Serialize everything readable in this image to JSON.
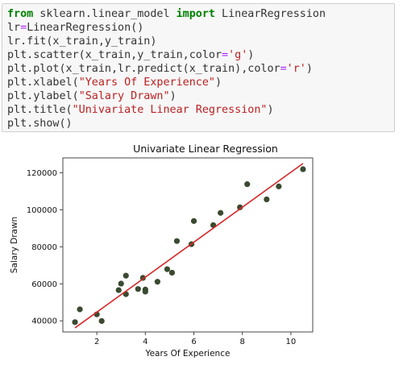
{
  "code": {
    "lines": [
      [
        {
          "t": "from",
          "c": "kw"
        },
        {
          "t": " sklearn.linear_model ",
          "c": ""
        },
        {
          "t": "import",
          "c": "kw"
        },
        {
          "t": " LinearRegression",
          "c": ""
        }
      ],
      [
        {
          "t": "lr",
          "c": ""
        },
        {
          "t": "=",
          "c": "op"
        },
        {
          "t": "LinearRegression()",
          "c": ""
        }
      ],
      [
        {
          "t": "lr.fit(x_train,y_train)",
          "c": ""
        }
      ],
      [
        {
          "t": "plt.scatter(x_train,y_train,color",
          "c": ""
        },
        {
          "t": "=",
          "c": "op"
        },
        {
          "t": "'g'",
          "c": "str"
        },
        {
          "t": ")",
          "c": ""
        }
      ],
      [
        {
          "t": "plt.plot(x_train,lr.predict(x_train),color",
          "c": ""
        },
        {
          "t": "=",
          "c": "op"
        },
        {
          "t": "'r'",
          "c": "str"
        },
        {
          "t": ")",
          "c": ""
        }
      ],
      [
        {
          "t": "plt.xlabel(",
          "c": ""
        },
        {
          "t": "\"Years Of Experience\"",
          "c": "str"
        },
        {
          "t": ")",
          "c": ""
        }
      ],
      [
        {
          "t": "plt.ylabel(",
          "c": ""
        },
        {
          "t": "\"Salary Drawn\"",
          "c": "str"
        },
        {
          "t": ")",
          "c": ""
        }
      ],
      [
        {
          "t": "plt.title(",
          "c": ""
        },
        {
          "t": "\"Univariate Linear Regression\"",
          "c": "str"
        },
        {
          "t": ")",
          "c": ""
        }
      ],
      [
        {
          "t": "plt.show()",
          "c": ""
        }
      ]
    ]
  },
  "chart_data": {
    "type": "scatter",
    "title": "Univariate Linear Regression",
    "xlabel": "Years Of Experience",
    "ylabel": "Salary Drawn",
    "xlim": [
      0.6,
      10.9
    ],
    "ylim": [
      34000,
      128000
    ],
    "xticks": [
      2,
      4,
      6,
      8,
      10
    ],
    "yticks": [
      40000,
      60000,
      80000,
      100000,
      120000
    ],
    "grid": false,
    "series": [
      {
        "kind": "scatter",
        "color": "#3a4a30",
        "points": [
          [
            1.1,
            39300
          ],
          [
            1.3,
            46200
          ],
          [
            2.0,
            43500
          ],
          [
            2.2,
            39900
          ],
          [
            2.9,
            56600
          ],
          [
            3.0,
            60100
          ],
          [
            3.2,
            54400
          ],
          [
            3.2,
            64400
          ],
          [
            3.7,
            57200
          ],
          [
            3.9,
            63200
          ],
          [
            4.0,
            55800
          ],
          [
            4.0,
            56900
          ],
          [
            4.5,
            61100
          ],
          [
            4.9,
            67900
          ],
          [
            5.1,
            66000
          ],
          [
            5.3,
            83100
          ],
          [
            5.9,
            81400
          ],
          [
            6.0,
            93900
          ],
          [
            6.8,
            91700
          ],
          [
            7.1,
            98300
          ],
          [
            7.9,
            101300
          ],
          [
            8.2,
            113800
          ],
          [
            9.0,
            105600
          ],
          [
            9.5,
            112600
          ],
          [
            10.5,
            121900
          ]
        ]
      },
      {
        "kind": "line",
        "color": "#d62728",
        "points": [
          [
            1.1,
            36200
          ],
          [
            10.5,
            125000
          ]
        ]
      }
    ]
  }
}
